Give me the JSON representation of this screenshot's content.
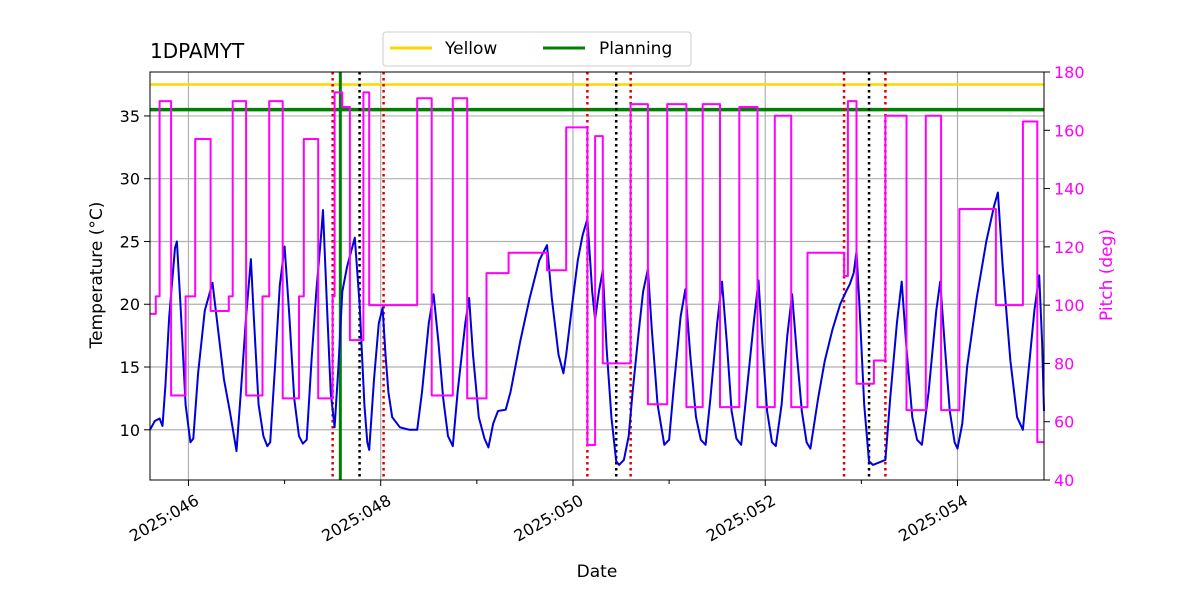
{
  "chart_data": {
    "type": "line",
    "title": "1DPAMYT",
    "xlabel": "Date",
    "ylabel": "Temperature ($^\\circ$C)",
    "ylabel_display": "Temperature (°C)",
    "y2label": "Pitch (deg)",
    "xlim": [
      45.6,
      54.9
    ],
    "ylim": [
      6.0,
      38.5
    ],
    "y2lim": [
      40,
      180
    ],
    "x_ticks": [
      46,
      48,
      50,
      52,
      54
    ],
    "x_minor_ticks": [
      47,
      49,
      51,
      53
    ],
    "x_tick_labels": [
      "2025:046",
      "2025:048",
      "2025:050",
      "2025:052",
      "2025:054"
    ],
    "y_ticks": [
      10,
      15,
      20,
      25,
      30,
      35
    ],
    "y2_ticks": [
      40,
      60,
      80,
      100,
      120,
      140,
      160,
      180
    ],
    "grid": true,
    "colors": {
      "temperature": "#0000dd",
      "pitch": "#ff00ff",
      "yellow": "#ffd700",
      "planning": "#008000",
      "red_marker": "#dd0000",
      "black_marker": "#000000",
      "grid": "#b0b0b0"
    },
    "legend": {
      "position": "top-center",
      "entries": [
        "Yellow",
        "Planning"
      ]
    },
    "yellow_limit": 37.5,
    "planning_limit": 35.5,
    "planning_vline_x": 47.58,
    "red_dotted_x": [
      47.5,
      48.03,
      50.15,
      50.6,
      52.82,
      53.25
    ],
    "black_dotted_x": [
      47.78,
      50.45,
      53.08
    ],
    "series": [
      {
        "name": "Temperature",
        "axis": "left",
        "points": [
          [
            45.6,
            10.0
          ],
          [
            45.65,
            10.7
          ],
          [
            45.7,
            10.9
          ],
          [
            45.73,
            10.3
          ],
          [
            45.76,
            13.5
          ],
          [
            45.8,
            19.0
          ],
          [
            45.86,
            24.5
          ],
          [
            45.88,
            25.0
          ],
          [
            45.92,
            19.5
          ],
          [
            45.97,
            12.0
          ],
          [
            46.02,
            9.0
          ],
          [
            46.05,
            9.3
          ],
          [
            46.1,
            14.5
          ],
          [
            46.17,
            19.5
          ],
          [
            46.25,
            21.7
          ],
          [
            46.3,
            18.5
          ],
          [
            46.37,
            14.0
          ],
          [
            46.43,
            11.5
          ],
          [
            46.5,
            8.3
          ],
          [
            46.55,
            13.5
          ],
          [
            46.6,
            19.0
          ],
          [
            46.65,
            23.6
          ],
          [
            46.68,
            19.0
          ],
          [
            46.73,
            12.0
          ],
          [
            46.78,
            9.5
          ],
          [
            46.82,
            8.7
          ],
          [
            46.85,
            9.0
          ],
          [
            46.9,
            15.0
          ],
          [
            46.95,
            21.5
          ],
          [
            47.0,
            24.6
          ],
          [
            47.05,
            19.0
          ],
          [
            47.1,
            12.5
          ],
          [
            47.15,
            9.5
          ],
          [
            47.19,
            8.9
          ],
          [
            47.23,
            9.2
          ],
          [
            47.28,
            15.5
          ],
          [
            47.33,
            21.0
          ],
          [
            47.38,
            25.5
          ],
          [
            47.4,
            27.5
          ],
          [
            47.44,
            20.0
          ],
          [
            47.48,
            13.0
          ],
          [
            47.52,
            10.2
          ],
          [
            47.56,
            15.0
          ],
          [
            47.6,
            21.0
          ],
          [
            47.65,
            23.0
          ],
          [
            47.73,
            25.3
          ],
          [
            47.78,
            20.0
          ],
          [
            47.83,
            12.0
          ],
          [
            47.86,
            9.0
          ],
          [
            47.88,
            8.4
          ],
          [
            47.93,
            14.0
          ],
          [
            47.98,
            18.5
          ],
          [
            48.02,
            19.7
          ],
          [
            48.05,
            16.0
          ],
          [
            48.08,
            13.0
          ],
          [
            48.12,
            11.0
          ],
          [
            48.2,
            10.2
          ],
          [
            48.3,
            10.0
          ],
          [
            48.38,
            10.0
          ],
          [
            48.43,
            13.0
          ],
          [
            48.5,
            18.5
          ],
          [
            48.55,
            20.8
          ],
          [
            48.6,
            17.0
          ],
          [
            48.65,
            12.5
          ],
          [
            48.7,
            9.5
          ],
          [
            48.75,
            8.7
          ],
          [
            48.8,
            13.0
          ],
          [
            48.88,
            18.5
          ],
          [
            48.92,
            20.5
          ],
          [
            48.96,
            16.0
          ],
          [
            49.02,
            11.0
          ],
          [
            49.08,
            9.3
          ],
          [
            49.12,
            8.6
          ],
          [
            49.17,
            10.5
          ],
          [
            49.22,
            11.5
          ],
          [
            49.3,
            11.6
          ],
          [
            49.35,
            13.0
          ],
          [
            49.45,
            17.0
          ],
          [
            49.55,
            20.5
          ],
          [
            49.65,
            23.5
          ],
          [
            49.73,
            24.7
          ],
          [
            49.78,
            20.5
          ],
          [
            49.85,
            16.0
          ],
          [
            49.9,
            14.5
          ],
          [
            49.93,
            16.0
          ],
          [
            50.0,
            20.5
          ],
          [
            50.05,
            23.5
          ],
          [
            50.1,
            25.5
          ],
          [
            50.15,
            26.8
          ],
          [
            50.2,
            21.0
          ],
          [
            50.23,
            18.8
          ],
          [
            50.27,
            21.0
          ],
          [
            50.31,
            22.7
          ],
          [
            50.35,
            16.5
          ],
          [
            50.4,
            11.0
          ],
          [
            50.45,
            7.5
          ],
          [
            50.48,
            7.2
          ],
          [
            50.53,
            7.6
          ],
          [
            50.58,
            9.5
          ],
          [
            50.62,
            13.0
          ],
          [
            50.68,
            17.5
          ],
          [
            50.73,
            21.0
          ],
          [
            50.78,
            22.8
          ],
          [
            50.82,
            18.0
          ],
          [
            50.88,
            12.0
          ],
          [
            50.95,
            8.8
          ],
          [
            51.0,
            9.2
          ],
          [
            51.05,
            13.5
          ],
          [
            51.12,
            19.0
          ],
          [
            51.17,
            21.2
          ],
          [
            51.22,
            16.0
          ],
          [
            51.28,
            11.0
          ],
          [
            51.33,
            9.2
          ],
          [
            51.38,
            8.8
          ],
          [
            51.43,
            12.5
          ],
          [
            51.5,
            18.5
          ],
          [
            51.55,
            21.8
          ],
          [
            51.6,
            17.0
          ],
          [
            51.65,
            11.5
          ],
          [
            51.7,
            9.3
          ],
          [
            51.75,
            8.8
          ],
          [
            51.8,
            12.5
          ],
          [
            51.88,
            18.5
          ],
          [
            51.93,
            21.9
          ],
          [
            51.97,
            17.0
          ],
          [
            52.02,
            11.5
          ],
          [
            52.07,
            9.0
          ],
          [
            52.11,
            8.7
          ],
          [
            52.17,
            12.0
          ],
          [
            52.23,
            17.5
          ],
          [
            52.28,
            20.8
          ],
          [
            52.33,
            16.0
          ],
          [
            52.38,
            11.5
          ],
          [
            52.43,
            9.0
          ],
          [
            52.47,
            8.5
          ],
          [
            52.55,
            12.5
          ],
          [
            52.62,
            15.5
          ],
          [
            52.7,
            18.0
          ],
          [
            52.78,
            20.0
          ],
          [
            52.84,
            21.0
          ],
          [
            52.88,
            21.6
          ],
          [
            52.92,
            22.5
          ],
          [
            52.95,
            24.2
          ],
          [
            52.98,
            20.0
          ],
          [
            53.03,
            12.0
          ],
          [
            53.08,
            7.5
          ],
          [
            53.12,
            7.2
          ],
          [
            53.25,
            7.6
          ],
          [
            53.3,
            12.5
          ],
          [
            53.37,
            18.5
          ],
          [
            53.42,
            21.8
          ],
          [
            53.47,
            16.5
          ],
          [
            53.53,
            11.0
          ],
          [
            53.58,
            9.2
          ],
          [
            53.63,
            8.8
          ],
          [
            53.7,
            13.0
          ],
          [
            53.78,
            19.5
          ],
          [
            53.82,
            21.8
          ],
          [
            53.87,
            16.5
          ],
          [
            53.92,
            11.5
          ],
          [
            53.97,
            9.0
          ],
          [
            54.0,
            8.5
          ],
          [
            54.05,
            10.5
          ],
          [
            54.1,
            15.0
          ],
          [
            54.2,
            20.5
          ],
          [
            54.3,
            25.0
          ],
          [
            54.38,
            27.8
          ],
          [
            54.42,
            28.9
          ],
          [
            54.47,
            23.0
          ],
          [
            54.55,
            15.5
          ],
          [
            54.62,
            11.0
          ],
          [
            54.68,
            10.0
          ],
          [
            54.73,
            14.0
          ],
          [
            54.8,
            19.5
          ],
          [
            54.85,
            22.3
          ],
          [
            54.88,
            17.0
          ],
          [
            54.9,
            11.5
          ]
        ]
      },
      {
        "name": "Pitch",
        "axis": "right",
        "points": [
          [
            45.6,
            97
          ],
          [
            45.66,
            97
          ],
          [
            45.66,
            103
          ],
          [
            45.7,
            103
          ],
          [
            45.7,
            170
          ],
          [
            45.82,
            170
          ],
          [
            45.82,
            69
          ],
          [
            45.97,
            69
          ],
          [
            45.97,
            103
          ],
          [
            46.07,
            103
          ],
          [
            46.07,
            157
          ],
          [
            46.23,
            157
          ],
          [
            46.23,
            98
          ],
          [
            46.42,
            98
          ],
          [
            46.42,
            103
          ],
          [
            46.46,
            103
          ],
          [
            46.46,
            170
          ],
          [
            46.6,
            170
          ],
          [
            46.6,
            69
          ],
          [
            46.77,
            69
          ],
          [
            46.77,
            103
          ],
          [
            46.84,
            103
          ],
          [
            46.84,
            170
          ],
          [
            46.98,
            170
          ],
          [
            46.98,
            68
          ],
          [
            47.15,
            68
          ],
          [
            47.15,
            103
          ],
          [
            47.2,
            103
          ],
          [
            47.2,
            157
          ],
          [
            47.35,
            157
          ],
          [
            47.35,
            68
          ],
          [
            47.5,
            68
          ],
          [
            47.5,
            103
          ],
          [
            47.52,
            103
          ],
          [
            47.52,
            173
          ],
          [
            47.6,
            173
          ],
          [
            47.6,
            168
          ],
          [
            47.68,
            168
          ],
          [
            47.68,
            88
          ],
          [
            47.82,
            88
          ],
          [
            47.82,
            173
          ],
          [
            47.88,
            173
          ],
          [
            47.88,
            100
          ],
          [
            48.38,
            100
          ],
          [
            48.38,
            171
          ],
          [
            48.53,
            171
          ],
          [
            48.53,
            69
          ],
          [
            48.75,
            69
          ],
          [
            48.75,
            171
          ],
          [
            48.9,
            171
          ],
          [
            48.9,
            68
          ],
          [
            49.1,
            68
          ],
          [
            49.1,
            111
          ],
          [
            49.33,
            111
          ],
          [
            49.33,
            118
          ],
          [
            49.73,
            118
          ],
          [
            49.73,
            112
          ],
          [
            49.93,
            112
          ],
          [
            49.93,
            161
          ],
          [
            50.15,
            161
          ],
          [
            50.15,
            52
          ],
          [
            50.23,
            52
          ],
          [
            50.23,
            158
          ],
          [
            50.31,
            158
          ],
          [
            50.31,
            80
          ],
          [
            50.6,
            80
          ],
          [
            50.6,
            169
          ],
          [
            50.78,
            169
          ],
          [
            50.78,
            66
          ],
          [
            50.98,
            66
          ],
          [
            50.98,
            169
          ],
          [
            51.18,
            169
          ],
          [
            51.18,
            65
          ],
          [
            51.35,
            65
          ],
          [
            51.35,
            169
          ],
          [
            51.53,
            169
          ],
          [
            51.53,
            65
          ],
          [
            51.73,
            65
          ],
          [
            51.73,
            168
          ],
          [
            51.92,
            168
          ],
          [
            51.92,
            65
          ],
          [
            52.1,
            65
          ],
          [
            52.1,
            165
          ],
          [
            52.27,
            165
          ],
          [
            52.27,
            65
          ],
          [
            52.44,
            65
          ],
          [
            52.44,
            118
          ],
          [
            52.82,
            118
          ],
          [
            52.82,
            110
          ],
          [
            52.86,
            110
          ],
          [
            52.86,
            170
          ],
          [
            52.95,
            170
          ],
          [
            52.95,
            73
          ],
          [
            53.13,
            73
          ],
          [
            53.13,
            81
          ],
          [
            53.25,
            81
          ],
          [
            53.25,
            165
          ],
          [
            53.47,
            165
          ],
          [
            53.47,
            64
          ],
          [
            53.67,
            64
          ],
          [
            53.67,
            165
          ],
          [
            53.83,
            165
          ],
          [
            53.83,
            64
          ],
          [
            54.02,
            64
          ],
          [
            54.02,
            133
          ],
          [
            54.4,
            133
          ],
          [
            54.4,
            100
          ],
          [
            54.68,
            100
          ],
          [
            54.68,
            163
          ],
          [
            54.83,
            163
          ],
          [
            54.83,
            53
          ],
          [
            54.9,
            53
          ]
        ]
      }
    ]
  }
}
